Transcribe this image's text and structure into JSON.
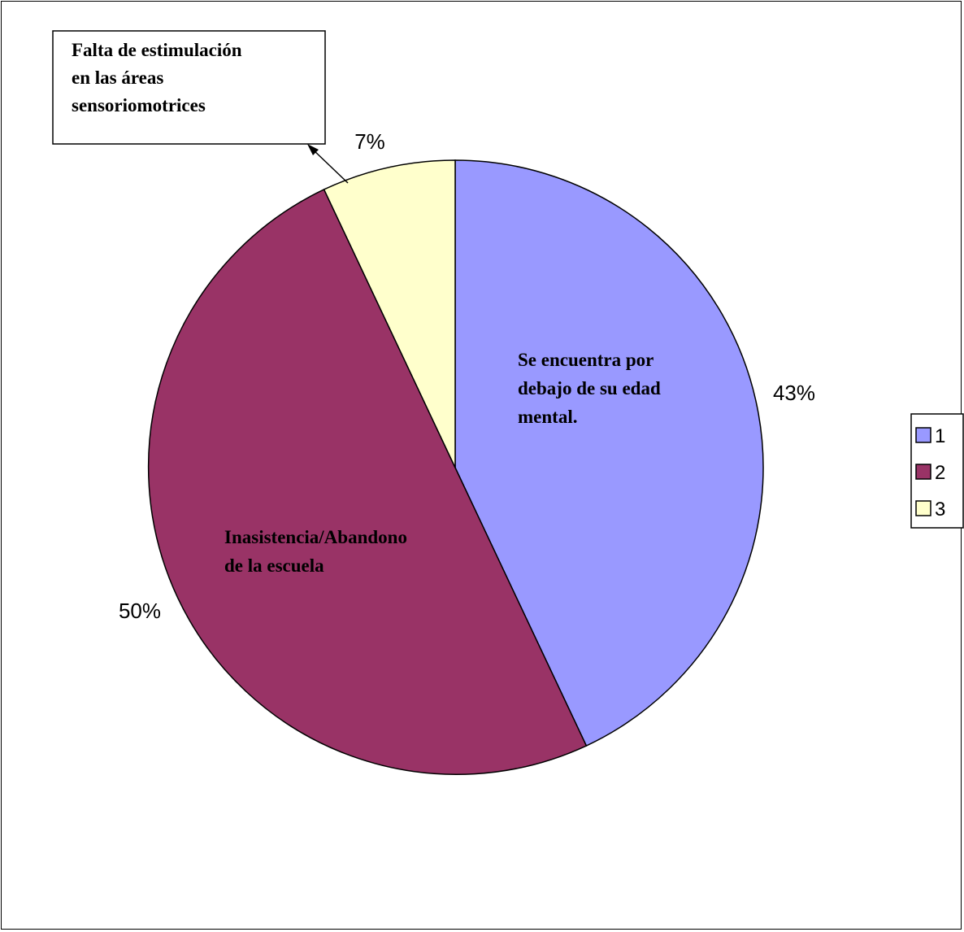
{
  "chart_data": {
    "type": "pie",
    "slices": [
      {
        "legend": "1",
        "value": 43,
        "label": "43%",
        "color": "#9999ff",
        "annotation": [
          "Se encuentra por",
          "debajo de su  edad",
          "mental."
        ]
      },
      {
        "legend": "2",
        "value": 50,
        "label": "50%",
        "color": "#993366",
        "annotation": [
          "Inasistencia/Abandono",
          "de la escuela"
        ]
      },
      {
        "legend": "3",
        "value": 7,
        "label": "7%",
        "color": "#ffffcc",
        "annotation": [
          "Falta de estimulación",
          "en las áreas",
          "sensoriomotrices"
        ]
      }
    ],
    "legend_position": "right"
  }
}
